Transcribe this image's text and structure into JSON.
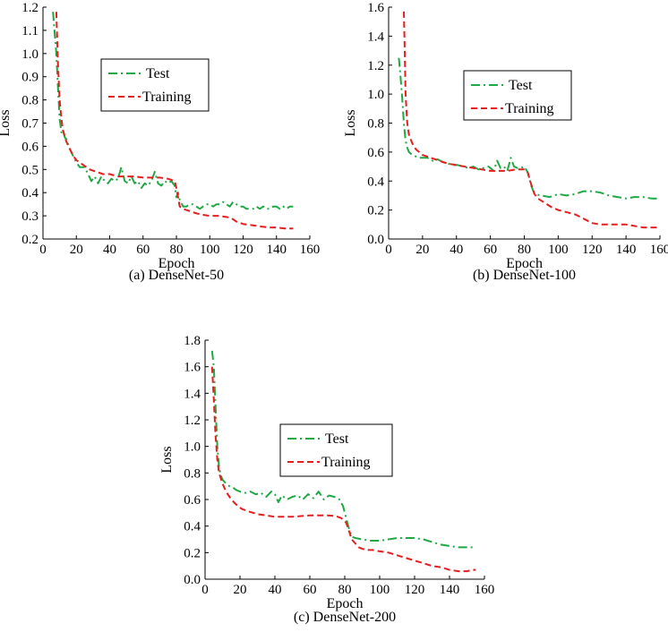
{
  "chart_data": [
    {
      "type": "line",
      "caption": "(a) DenseNet-50",
      "xlabel": "Epoch",
      "ylabel": "Loss",
      "xlim": [
        0,
        160
      ],
      "ylim": [
        0.2,
        1.2
      ],
      "xticks": [
        0,
        20,
        40,
        60,
        80,
        100,
        120,
        140,
        160
      ],
      "xtick_labels": [
        "0",
        "20",
        "40",
        "60",
        "80",
        "100",
        "120",
        "140",
        "160"
      ],
      "yticks": [
        0.2,
        0.3,
        0.4,
        0.5,
        0.6,
        0.7,
        0.8,
        0.9,
        1.0,
        1.1,
        1.2
      ],
      "ytick_labels": [
        "0.2",
        "0.3",
        "0.4",
        "0.5",
        "0.6",
        "0.7",
        "0.8",
        "0.9",
        "1.0",
        "1.1",
        "1.2"
      ],
      "legend": [
        "Test",
        "Training"
      ],
      "series": [
        {
          "name": "Test",
          "color": "#1fa843",
          "dash": "dashdot",
          "x": [
            6,
            8,
            9,
            10,
            11,
            12,
            13,
            14,
            16,
            18,
            20,
            22,
            25,
            27,
            29,
            31,
            33,
            35,
            37,
            39,
            41,
            43,
            45,
            47,
            49,
            51,
            53,
            55,
            57,
            59,
            61,
            63,
            65,
            67,
            69,
            71,
            73,
            75,
            77,
            79,
            80,
            81,
            82,
            84,
            86,
            88,
            90,
            92,
            94,
            96,
            98,
            100,
            102,
            104,
            106,
            108,
            110,
            112,
            114,
            116,
            118,
            120,
            122,
            124,
            126,
            128,
            130,
            132,
            134,
            136,
            138,
            140,
            142,
            144,
            146,
            148,
            150
          ],
          "y": [
            1.18,
            1.0,
            0.85,
            0.72,
            0.66,
            0.67,
            0.64,
            0.63,
            0.59,
            0.56,
            0.53,
            0.51,
            0.51,
            0.48,
            0.45,
            0.47,
            0.44,
            0.47,
            0.45,
            0.44,
            0.46,
            0.45,
            0.46,
            0.51,
            0.45,
            0.44,
            0.47,
            0.44,
            0.45,
            0.42,
            0.44,
            0.43,
            0.45,
            0.49,
            0.44,
            0.43,
            0.45,
            0.44,
            0.45,
            0.43,
            0.38,
            0.4,
            0.37,
            0.34,
            0.34,
            0.35,
            0.35,
            0.34,
            0.33,
            0.34,
            0.35,
            0.35,
            0.34,
            0.35,
            0.35,
            0.36,
            0.35,
            0.34,
            0.36,
            0.35,
            0.34,
            0.34,
            0.33,
            0.33,
            0.33,
            0.34,
            0.33,
            0.34,
            0.33,
            0.33,
            0.34,
            0.34,
            0.33,
            0.34,
            0.33,
            0.34,
            0.34
          ]
        },
        {
          "name": "Training",
          "color": "#e51e1e",
          "dash": "dashed",
          "x": [
            8,
            9,
            10,
            11,
            12,
            14,
            16,
            18,
            20,
            24,
            28,
            32,
            36,
            40,
            45,
            50,
            55,
            60,
            65,
            70,
            75,
            79,
            80,
            81,
            82,
            84,
            86,
            90,
            95,
            100,
            105,
            110,
            113,
            116,
            120,
            125,
            130,
            135,
            140,
            145,
            150
          ],
          "y": [
            1.18,
            0.95,
            0.8,
            0.72,
            0.67,
            0.62,
            0.59,
            0.56,
            0.54,
            0.52,
            0.5,
            0.49,
            0.48,
            0.48,
            0.47,
            0.47,
            0.47,
            0.465,
            0.465,
            0.465,
            0.46,
            0.45,
            0.42,
            0.38,
            0.34,
            0.33,
            0.325,
            0.315,
            0.305,
            0.3,
            0.3,
            0.295,
            0.29,
            0.275,
            0.265,
            0.26,
            0.255,
            0.25,
            0.25,
            0.245,
            0.245
          ]
        }
      ]
    },
    {
      "type": "line",
      "caption": "(b) DenseNet-100",
      "xlabel": "Epoch",
      "ylabel": "Loss",
      "xlim": [
        0,
        160
      ],
      "ylim": [
        0.0,
        1.6
      ],
      "xticks": [
        0,
        20,
        40,
        60,
        80,
        100,
        120,
        140,
        160
      ],
      "xtick_labels": [
        "0",
        "20",
        "40",
        "60",
        "80",
        "100",
        "120",
        "140",
        "160"
      ],
      "yticks": [
        0.0,
        0.2,
        0.4,
        0.6,
        0.8,
        1.0,
        1.2,
        1.4,
        1.6
      ],
      "ytick_labels": [
        "0.0",
        "0.2",
        "0.4",
        "0.6",
        "0.8",
        "1.0",
        "1.2",
        "1.4",
        "1.6"
      ],
      "legend": [
        "Test",
        "Training"
      ],
      "series": [
        {
          "name": "Test",
          "color": "#1fa843",
          "dash": "dashdot",
          "x": [
            6,
            7,
            8,
            9,
            10,
            11,
            12,
            14,
            16,
            18,
            20,
            23,
            26,
            29,
            32,
            35,
            38,
            41,
            44,
            47,
            50,
            53,
            56,
            59,
            62,
            64,
            66,
            68,
            70,
            72,
            74,
            76,
            78,
            80,
            82,
            84,
            86,
            90,
            95,
            100,
            105,
            110,
            115,
            120,
            125,
            130,
            135,
            140,
            145,
            150,
            155,
            160
          ],
          "y": [
            1.25,
            1.12,
            0.98,
            0.8,
            0.68,
            0.63,
            0.6,
            0.58,
            0.57,
            0.56,
            0.56,
            0.56,
            0.54,
            0.55,
            0.53,
            0.52,
            0.51,
            0.51,
            0.5,
            0.49,
            0.5,
            0.48,
            0.49,
            0.5,
            0.47,
            0.54,
            0.49,
            0.5,
            0.47,
            0.56,
            0.5,
            0.49,
            0.49,
            0.5,
            0.46,
            0.37,
            0.31,
            0.3,
            0.29,
            0.31,
            0.3,
            0.31,
            0.33,
            0.33,
            0.32,
            0.3,
            0.29,
            0.28,
            0.29,
            0.29,
            0.28,
            0.28
          ]
        },
        {
          "name": "Training",
          "color": "#e51e1e",
          "dash": "dashed",
          "x": [
            9,
            9.5,
            10,
            11,
            12,
            14,
            16,
            18,
            20,
            25,
            30,
            35,
            40,
            45,
            50,
            55,
            60,
            65,
            70,
            75,
            80,
            82,
            84,
            86,
            88,
            92,
            96,
            100,
            110,
            115,
            120,
            125,
            130,
            140,
            145,
            150,
            155,
            160
          ],
          "y": [
            1.57,
            1.3,
            1.0,
            0.8,
            0.72,
            0.66,
            0.62,
            0.6,
            0.58,
            0.56,
            0.54,
            0.52,
            0.51,
            0.5,
            0.49,
            0.48,
            0.47,
            0.47,
            0.47,
            0.48,
            0.48,
            0.46,
            0.38,
            0.31,
            0.28,
            0.25,
            0.22,
            0.2,
            0.17,
            0.14,
            0.11,
            0.1,
            0.1,
            0.1,
            0.09,
            0.08,
            0.08,
            0.08
          ]
        }
      ]
    },
    {
      "type": "line",
      "caption": "(c) DenseNet-200",
      "xlabel": "Epoch",
      "ylabel": "Loss",
      "xlim": [
        0,
        160
      ],
      "ylim": [
        0.0,
        1.8
      ],
      "xticks": [
        0,
        20,
        40,
        60,
        80,
        100,
        120,
        140,
        160
      ],
      "xtick_labels": [
        "0",
        "20",
        "40",
        "60",
        "80",
        "100",
        "120",
        "140",
        "160"
      ],
      "yticks": [
        0.0,
        0.2,
        0.4,
        0.6,
        0.8,
        1.0,
        1.2,
        1.4,
        1.6,
        1.8
      ],
      "ytick_labels": [
        "0.0",
        "0.2",
        "0.4",
        "0.6",
        "0.8",
        "1.0",
        "1.2",
        "1.4",
        "1.6",
        "1.8"
      ],
      "legend": [
        "Test",
        "Training"
      ],
      "series": [
        {
          "name": "Test",
          "color": "#1fa843",
          "dash": "dashdot",
          "x": [
            4,
            5,
            6,
            7,
            8,
            9,
            10,
            12,
            14,
            16,
            18,
            20,
            23,
            26,
            29,
            32,
            35,
            38,
            40,
            42,
            44,
            47,
            50,
            53,
            56,
            59,
            62,
            65,
            68,
            71,
            74,
            77,
            79,
            80,
            82,
            84,
            86,
            90,
            95,
            100,
            105,
            110,
            115,
            120,
            125,
            130,
            135,
            140,
            145,
            150,
            155
          ],
          "y": [
            1.72,
            1.6,
            1.3,
            1.0,
            0.85,
            0.78,
            0.75,
            0.72,
            0.7,
            0.69,
            0.67,
            0.66,
            0.65,
            0.66,
            0.64,
            0.65,
            0.62,
            0.66,
            0.64,
            0.58,
            0.63,
            0.6,
            0.62,
            0.63,
            0.6,
            0.64,
            0.61,
            0.66,
            0.6,
            0.63,
            0.62,
            0.6,
            0.55,
            0.5,
            0.4,
            0.32,
            0.31,
            0.3,
            0.29,
            0.29,
            0.3,
            0.31,
            0.31,
            0.31,
            0.3,
            0.28,
            0.26,
            0.25,
            0.24,
            0.24,
            0.24
          ]
        },
        {
          "name": "Training",
          "color": "#e51e1e",
          "dash": "dashed",
          "x": [
            4,
            5,
            6,
            7,
            8,
            10,
            12,
            15,
            18,
            21,
            25,
            30,
            35,
            40,
            45,
            50,
            55,
            60,
            65,
            70,
            75,
            78,
            80,
            81,
            82,
            84,
            86,
            88,
            92,
            96,
            100,
            105,
            110,
            115,
            120,
            125,
            130,
            135,
            140,
            145,
            150,
            153,
            155
          ],
          "y": [
            1.6,
            1.35,
            1.08,
            0.9,
            0.8,
            0.72,
            0.66,
            0.6,
            0.56,
            0.53,
            0.51,
            0.49,
            0.48,
            0.47,
            0.47,
            0.47,
            0.475,
            0.48,
            0.48,
            0.48,
            0.475,
            0.46,
            0.44,
            0.42,
            0.38,
            0.3,
            0.27,
            0.24,
            0.22,
            0.22,
            0.21,
            0.2,
            0.18,
            0.16,
            0.14,
            0.12,
            0.1,
            0.09,
            0.07,
            0.06,
            0.06,
            0.07,
            0.07
          ]
        }
      ]
    }
  ]
}
